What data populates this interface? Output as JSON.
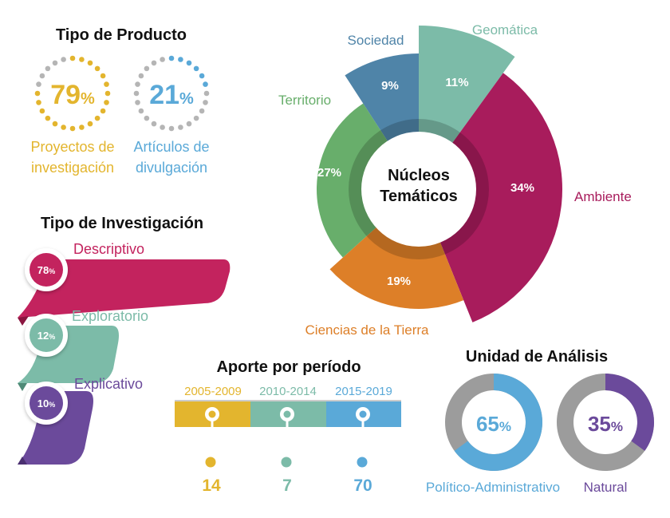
{
  "colors": {
    "yellow": "#E3B52E",
    "blue": "#5AA9D8",
    "magenta": "#C3235E",
    "teal": "#7CBBA8",
    "purple": "#6B4A9B",
    "green": "#68AE6B",
    "orange": "#DD7F28",
    "steel": "#4F84A8",
    "gray": "#9C9C9C",
    "ink": "#111111"
  },
  "tipo_producto": {
    "title": "Tipo de Producto",
    "items": [
      {
        "value": "79",
        "pct": "%",
        "label_line1": "Proyectos de",
        "label_line2": "investigación"
      },
      {
        "value": "21",
        "pct": "%",
        "label_line1": "Artículos de",
        "label_line2": "divulgación"
      }
    ]
  },
  "tipo_investigacion": {
    "title": "Tipo de Investigación",
    "items": [
      {
        "label": "Descriptivo",
        "value": "78",
        "pct": "%"
      },
      {
        "label": "Exploratorio",
        "value": "12",
        "pct": "%"
      },
      {
        "label": "Explicativo",
        "value": "10",
        "pct": "%"
      }
    ]
  },
  "aporte": {
    "title": "Aporte por período",
    "periods": [
      "2005-2009",
      "2010-2014",
      "2015-2019"
    ],
    "values": [
      "14",
      "7",
      "70"
    ]
  },
  "unidad": {
    "title": "Unidad de Análisis",
    "items": [
      {
        "value": "65",
        "pct": "%",
        "label": "Político-Administrativo"
      },
      {
        "value": "35",
        "pct": "%",
        "label": "Natural"
      }
    ]
  },
  "nucleos": {
    "center_line1": "Núcleos",
    "center_line2": "Temáticos"
  },
  "chart_data": [
    {
      "type": "pie",
      "title": "Tipo de Producto",
      "categories": [
        "Proyectos de investigación",
        "Artículos de divulgación"
      ],
      "values": [
        79,
        21
      ]
    },
    {
      "type": "bar",
      "title": "Tipo de Investigación",
      "categories": [
        "Descriptivo",
        "Exploratorio",
        "Explicativo"
      ],
      "values": [
        78,
        12,
        10
      ]
    },
    {
      "type": "pie",
      "title": "Núcleos Temáticos",
      "categories": [
        "Geomática",
        "Ambiente",
        "Ciencias de la Tierra",
        "Territorio",
        "Sociedad"
      ],
      "values": [
        11,
        34,
        19,
        27,
        9
      ]
    },
    {
      "type": "bar",
      "title": "Aporte por período",
      "categories": [
        "2005-2009",
        "2010-2014",
        "2015-2019"
      ],
      "values": [
        14,
        7,
        70
      ]
    },
    {
      "type": "pie",
      "title": "Unidad de Análisis",
      "categories": [
        "Político-Administrativo",
        "Natural"
      ],
      "values": [
        65,
        35
      ]
    }
  ]
}
